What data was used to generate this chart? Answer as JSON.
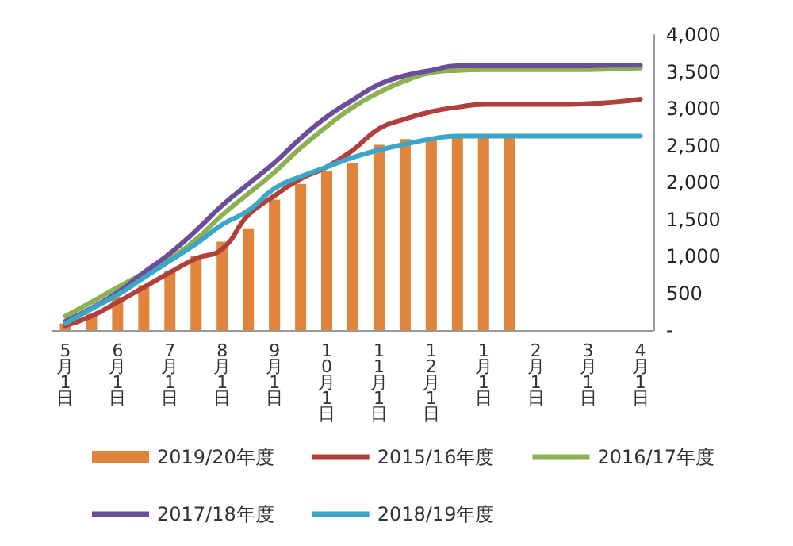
{
  "chart_data": {
    "type": "bar",
    "categories": [
      "5月1日",
      null,
      "6月1日",
      null,
      "7月1日",
      null,
      "8月1日",
      null,
      "9月1日",
      null,
      "10月1日",
      null,
      "11月1日",
      null,
      "12月1日",
      null,
      "1月1日",
      null,
      "2月1日",
      null,
      "3月1日",
      null,
      "4月1日"
    ],
    "series": [
      {
        "name": "2019/20年度",
        "color": "#e0843c",
        "values": [
          90,
          220,
          450,
          610,
          810,
          1000,
          1200,
          1380,
          1770,
          1980,
          2160,
          2270,
          2510,
          2590,
          2610,
          2610,
          2610,
          2610,
          null,
          null,
          null,
          null,
          null
        ]
      },
      {
        "name": "2015/16年度",
        "type": "line",
        "color": "#b0403c",
        "values": [
          60,
          190,
          380,
          580,
          780,
          970,
          1100,
          1560,
          1820,
          2050,
          2210,
          2440,
          2730,
          2860,
          2960,
          3020,
          3060,
          3060,
          3060,
          3060,
          3070,
          3090,
          3130
        ]
      },
      {
        "name": "2016/17年度",
        "type": "line",
        "color": "#8db050",
        "values": [
          190,
          380,
          580,
          770,
          970,
          1230,
          1560,
          1850,
          2140,
          2470,
          2760,
          3020,
          3220,
          3380,
          3490,
          3520,
          3530,
          3530,
          3530,
          3530,
          3530,
          3540,
          3550
        ]
      },
      {
        "name": "2017/18年度",
        "type": "line",
        "color": "#6a4e9a",
        "values": [
          120,
          300,
          510,
          780,
          1040,
          1350,
          1690,
          1980,
          2270,
          2600,
          2890,
          3120,
          3330,
          3450,
          3520,
          3580,
          3580,
          3580,
          3580,
          3580,
          3580,
          3590,
          3590
        ]
      },
      {
        "name": "2018/19年度",
        "type": "line",
        "color": "#3aa6c8",
        "values": [
          90,
          290,
          480,
          710,
          940,
          1170,
          1430,
          1620,
          1920,
          2080,
          2210,
          2340,
          2440,
          2520,
          2590,
          2630,
          2630,
          2630,
          2630,
          2630,
          2630,
          2630,
          2630
        ]
      }
    ],
    "ylim": [
      0,
      4000
    ],
    "yticks": [
      {
        "value": 0,
        "label": "-"
      },
      500,
      {
        "value": 1000,
        "label": "1,000"
      },
      {
        "value": 1500,
        "label": "1,500"
      },
      {
        "value": 2000,
        "label": "2,000"
      },
      {
        "value": 2500,
        "label": "2,500"
      },
      {
        "value": 3000,
        "label": "3,000"
      },
      {
        "value": 3500,
        "label": "3,500"
      },
      {
        "value": 4000,
        "label": "4,000"
      }
    ],
    "grid": false,
    "legend": "bottom",
    "marker": "none",
    "line_style": "solid"
  }
}
